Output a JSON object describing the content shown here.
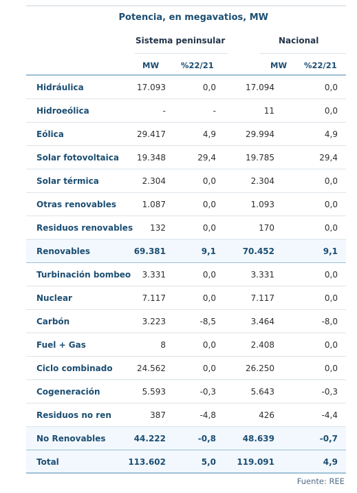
{
  "title": "Potencia, en megavatios, MW",
  "groups": {
    "peninsular": "Sistema peninsular",
    "nacional": "Nacional"
  },
  "columns": {
    "mw_1": "MW",
    "pct_1": "%22/21",
    "mw_2": "MW",
    "pct_2": "%22/21"
  },
  "rows": [
    {
      "label": "Hidráulica",
      "pen_mw": "17.093",
      "pen_pct": "0,0",
      "nac_mw": "17.094",
      "nac_pct": "0,0"
    },
    {
      "label": "Hidroeólica",
      "pen_mw": "-",
      "pen_pct": "-",
      "nac_mw": "11",
      "nac_pct": "0,0"
    },
    {
      "label": "Eólica",
      "pen_mw": "29.417",
      "pen_pct": "4,9",
      "nac_mw": "29.994",
      "nac_pct": "4,9"
    },
    {
      "label": "Solar fotovoltaica",
      "pen_mw": "19.348",
      "pen_pct": "29,4",
      "nac_mw": "19.785",
      "nac_pct": "29,4"
    },
    {
      "label": "Solar térmica",
      "pen_mw": "2.304",
      "pen_pct": "0,0",
      "nac_mw": "2.304",
      "nac_pct": "0,0"
    },
    {
      "label": "Otras renovables",
      "pen_mw": "1.087",
      "pen_pct": "0,0",
      "nac_mw": "1.093",
      "nac_pct": "0,0"
    },
    {
      "label": "Residuos renovables",
      "pen_mw": "132",
      "pen_pct": "0,0",
      "nac_mw": "170",
      "nac_pct": "0,0"
    },
    {
      "label": "Renovables",
      "pen_mw": "69.381",
      "pen_pct": "9,1",
      "nac_mw": "70.452",
      "nac_pct": "9,1"
    },
    {
      "label": "Turbinación bombeo",
      "pen_mw": "3.331",
      "pen_pct": "0,0",
      "nac_mw": "3.331",
      "nac_pct": "0,0"
    },
    {
      "label": "Nuclear",
      "pen_mw": "7.117",
      "pen_pct": "0,0",
      "nac_mw": "7.117",
      "nac_pct": "0,0"
    },
    {
      "label": "Carbón",
      "pen_mw": "3.223",
      "pen_pct": "-8,5",
      "nac_mw": "3.464",
      "nac_pct": "-8,0"
    },
    {
      "label": "Fuel + Gas",
      "pen_mw": "8",
      "pen_pct": "0,0",
      "nac_mw": "2.408",
      "nac_pct": "0,0"
    },
    {
      "label": "Ciclo combinado",
      "pen_mw": "24.562",
      "pen_pct": "0,0",
      "nac_mw": "26.250",
      "nac_pct": "0,0"
    },
    {
      "label": "Cogeneración",
      "pen_mw": "5.593",
      "pen_pct": "-0,3",
      "nac_mw": "5.643",
      "nac_pct": "-0,3"
    },
    {
      "label": "Residuos no ren",
      "pen_mw": "387",
      "pen_pct": "-4,8",
      "nac_mw": "426",
      "nac_pct": "-4,4"
    },
    {
      "label": "No Renovables",
      "pen_mw": "44.222",
      "pen_pct": "-0,8",
      "nac_mw": "48.639",
      "nac_pct": "-0,7"
    },
    {
      "label": "Total",
      "pen_mw": "113.602",
      "pen_pct": "5,0",
      "nac_mw": "119.091",
      "nac_pct": "4,9"
    }
  ],
  "source": "Fuente: REE"
}
